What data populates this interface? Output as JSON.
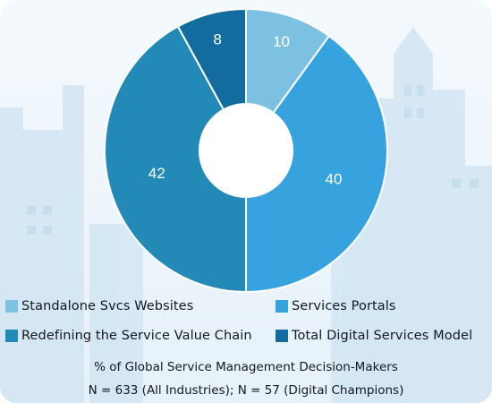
{
  "chart_data": {
    "type": "pie",
    "style": "donut",
    "categories": [
      "Standalone Svcs Websites",
      "Services Portals",
      "Redefining the Service Value Chain",
      "Total Digital Services Model"
    ],
    "values": [
      10,
      40,
      42,
      8
    ],
    "data_labels": [
      "10",
      "40",
      "42",
      "8"
    ],
    "colors": [
      "#7cc0e2",
      "#36a3df",
      "#238ab7",
      "#126d9e"
    ],
    "legend_position": "bottom",
    "notes": [
      "% of Global Service Management Decision-Makers",
      "N = 633 (All Industries); N = 57 (Digital Champions)"
    ]
  }
}
